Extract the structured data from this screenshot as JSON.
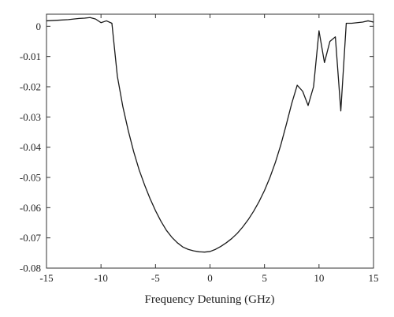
{
  "chart_data": {
    "type": "line",
    "title": "",
    "xlabel": "Frequency Detuning (GHz)",
    "ylabel": "",
    "xlim": [
      -15,
      15
    ],
    "ylim": [
      -0.08,
      0.004
    ],
    "grid": false,
    "legend": "none",
    "x_ticks": [
      -15,
      -10,
      -5,
      0,
      5,
      10,
      15
    ],
    "x_tick_labels": [
      "-15",
      "-10",
      "-5",
      "0",
      "5",
      "10",
      "15"
    ],
    "y_ticks": [
      0,
      -0.01,
      -0.02,
      -0.03,
      -0.04,
      -0.05,
      -0.06,
      -0.07,
      -0.08
    ],
    "y_tick_labels": [
      "0",
      "-0.01",
      "-0.02",
      "-0.03",
      "-0.04",
      "-0.05",
      "-0.06",
      "-0.07",
      "-0.08"
    ],
    "series": [
      {
        "color": "#1a1a1a",
        "x": [
          -15,
          -14,
          -13,
          -12,
          -11.5,
          -11,
          -10.5,
          -10,
          -9.5,
          -9,
          -8.5,
          -8,
          -7.5,
          -7,
          -6.5,
          -6,
          -5.5,
          -5,
          -4.5,
          -4,
          -3.5,
          -3,
          -2.5,
          -2,
          -1.5,
          -1,
          -0.5,
          0,
          0.5,
          1,
          1.5,
          2,
          2.5,
          3,
          3.5,
          4,
          4.5,
          5,
          5.5,
          6,
          6.5,
          7,
          7.5,
          8,
          8.5,
          9,
          9.5,
          10,
          10.5,
          11,
          11.5,
          12,
          12.5,
          13,
          13.5,
          14,
          14.5,
          15
        ],
        "y": [
          0.0018,
          0.002,
          0.0022,
          0.0026,
          0.0027,
          0.0029,
          0.0024,
          0.0012,
          0.0018,
          0.001,
          -0.0165,
          -0.0265,
          -0.0345,
          -0.0415,
          -0.0475,
          -0.0525,
          -0.057,
          -0.061,
          -0.0645,
          -0.0675,
          -0.0698,
          -0.0716,
          -0.073,
          -0.0738,
          -0.0743,
          -0.0746,
          -0.0747,
          -0.0745,
          -0.0738,
          -0.0728,
          -0.0716,
          -0.0702,
          -0.0685,
          -0.0664,
          -0.064,
          -0.0612,
          -0.058,
          -0.0543,
          -0.05,
          -0.045,
          -0.0392,
          -0.0325,
          -0.0255,
          -0.0195,
          -0.0215,
          -0.0262,
          -0.02,
          -0.0015,
          -0.012,
          -0.005,
          -0.0035,
          -0.028,
          0.001,
          0.001,
          0.0012,
          0.0014,
          0.0018,
          0.0014
        ]
      }
    ]
  }
}
